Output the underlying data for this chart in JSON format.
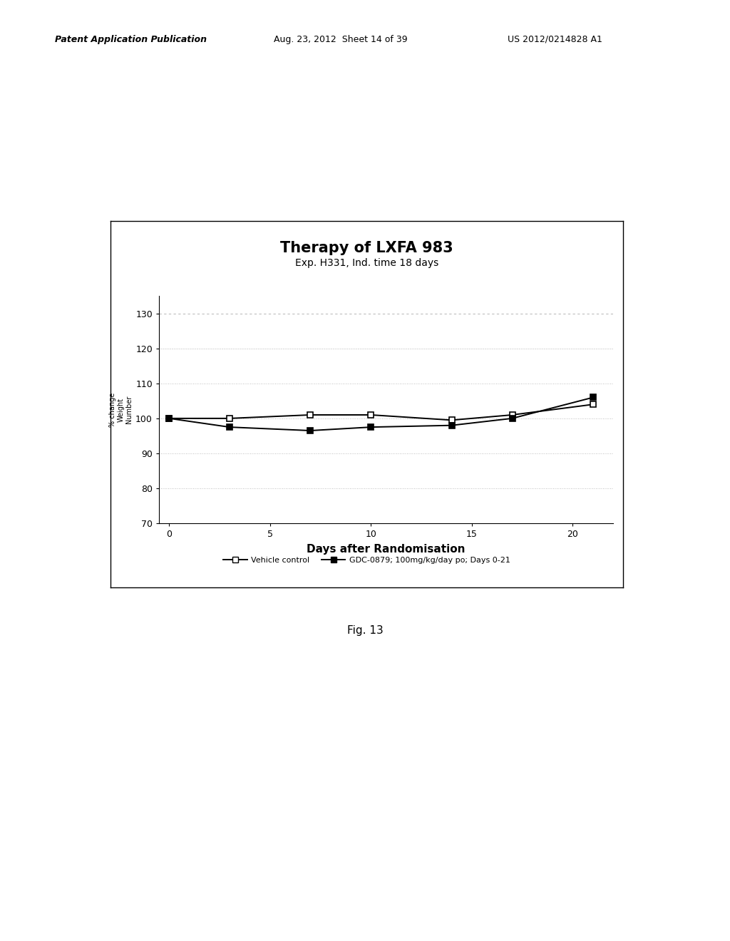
{
  "title": "Therapy of LXFA 983",
  "subtitle": "Exp. H331, Ind. time 18 days",
  "xlabel": "Days after Randomisation",
  "ylim": [
    70,
    135
  ],
  "xlim": [
    -0.5,
    22
  ],
  "yticks": [
    70,
    80,
    90,
    100,
    110,
    120,
    130
  ],
  "xticks": [
    0,
    5,
    10,
    15,
    20
  ],
  "vehicle_x": [
    0,
    3,
    7,
    10,
    14,
    17,
    21
  ],
  "vehicle_y": [
    100,
    100,
    101,
    101,
    99.5,
    101,
    104
  ],
  "gdc_x": [
    0,
    3,
    7,
    10,
    14,
    17,
    21
  ],
  "gdc_y": [
    100,
    97.5,
    96.5,
    97.5,
    98,
    100,
    106
  ],
  "vehicle_label": "Vehicle control",
  "gdc_label": "GDC-0879; 100mg/kg/day po; Days 0-21",
  "background_color": "#ffffff",
  "grid_color": "#aaaaaa",
  "title_fontsize": 15,
  "subtitle_fontsize": 10,
  "xlabel_fontsize": 11,
  "tick_fontsize": 9,
  "legend_fontsize": 8,
  "header_left": "Patent Application Publication",
  "header_mid": "Aug. 23, 2012  Sheet 14 of 39",
  "header_right": "US 2012/0214828 A1",
  "fig_caption": "Fig. 13",
  "ylabel_chars": [
    "%",
    "c",
    "h",
    "a",
    "n",
    "g",
    "e",
    "W",
    "e",
    "i",
    "g",
    "h",
    "t",
    "N",
    "u",
    "m",
    "b",
    "e",
    "r"
  ]
}
